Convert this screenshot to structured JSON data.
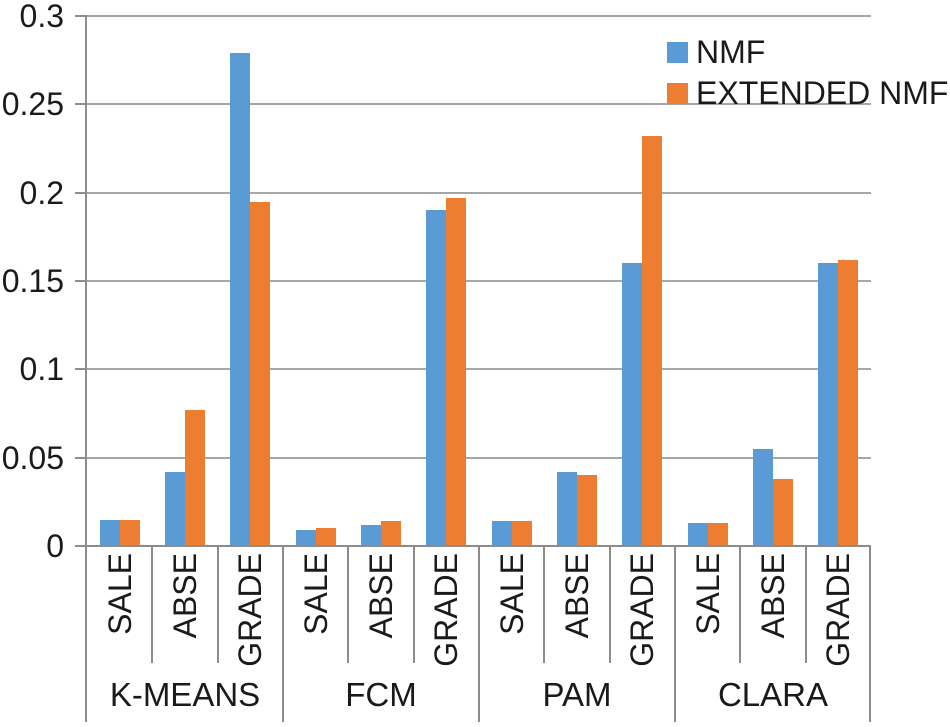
{
  "chart_data": {
    "type": "bar",
    "title": "",
    "xlabel": "",
    "ylabel": "",
    "ylim": [
      0,
      0.3
    ],
    "ytick_labels": [
      "0",
      "0.05",
      "0.1",
      "0.15",
      "0.2",
      "0.25",
      "0.3"
    ],
    "grid": true,
    "legend_position": "top-right",
    "groups": [
      "K-MEANS",
      "FCM",
      "PAM",
      "CLARA"
    ],
    "subcategories": [
      "SALE",
      "ABSE",
      "GRADE"
    ],
    "series": [
      {
        "name": "NMF",
        "color": "#5B9BD5",
        "values": [
          [
            0.015,
            0.042,
            0.279
          ],
          [
            0.009,
            0.012,
            0.19
          ],
          [
            0.014,
            0.042,
            0.16
          ],
          [
            0.013,
            0.055,
            0.16
          ]
        ]
      },
      {
        "name": "EXTENDED NMF",
        "color": "#ED7D31",
        "values": [
          [
            0.015,
            0.077,
            0.195
          ],
          [
            0.01,
            0.014,
            0.197
          ],
          [
            0.014,
            0.04,
            0.232
          ],
          [
            0.013,
            0.038,
            0.162
          ]
        ]
      }
    ]
  },
  "colors": {
    "gridline": "#a6a6a6",
    "axis": "#8c8c8c",
    "text": "#1a1a1a",
    "background": "#ffffff"
  }
}
